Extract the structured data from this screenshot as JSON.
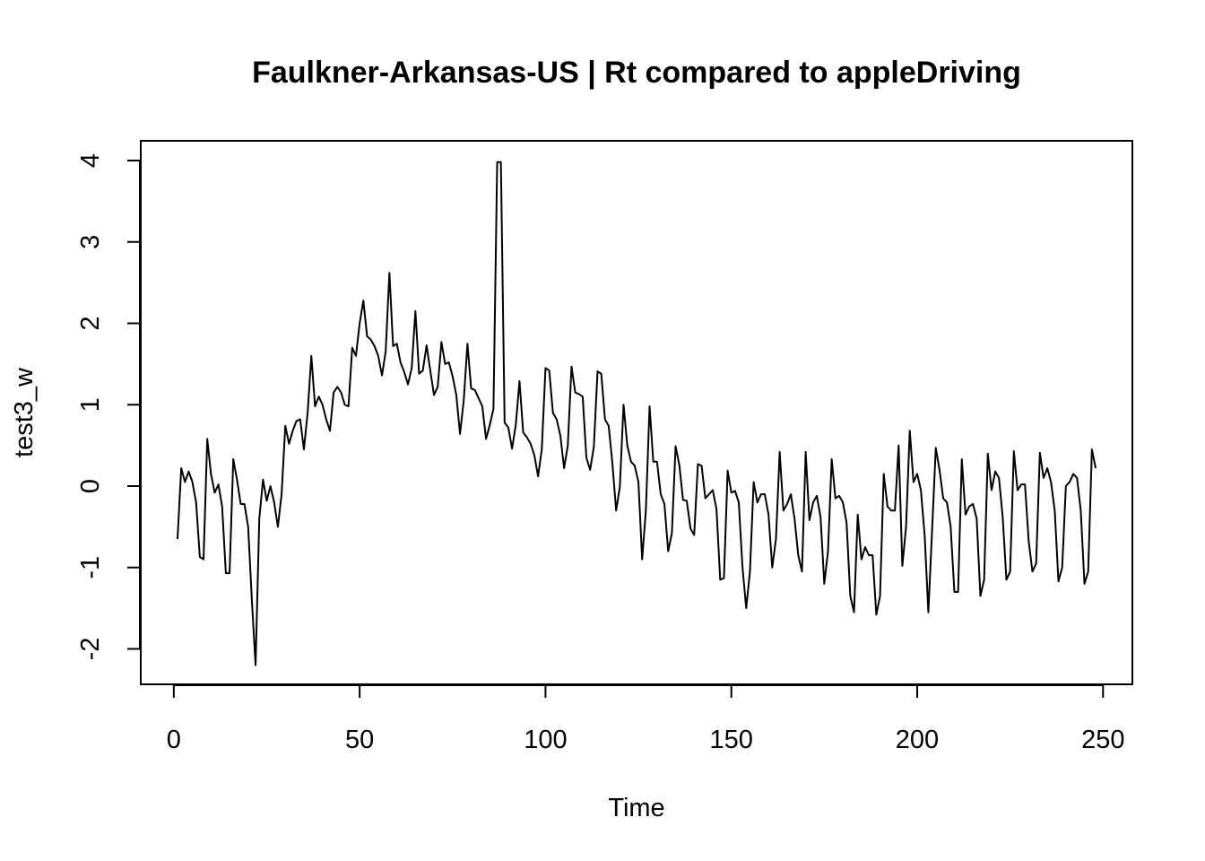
{
  "chart_data": {
    "type": "line",
    "title": "Faulkner-Arkansas-US | Rt compared to appleDriving",
    "xlabel": "Time",
    "ylabel": "test3_w",
    "xlim": [
      1,
      248
    ],
    "ylim": [
      -2.2,
      4.0
    ],
    "x_ticks": [
      0,
      50,
      100,
      150,
      200,
      250
    ],
    "x_tick_labels": [
      "0",
      "50",
      "100",
      "150",
      "200",
      "250"
    ],
    "y_ticks": [
      -2,
      -1,
      0,
      1,
      2,
      3,
      4
    ],
    "y_tick_labels": [
      "-2",
      "-1",
      "0",
      "1",
      "2",
      "3",
      "4"
    ],
    "grid": false,
    "legend": "none",
    "line_color": "#000000",
    "series": [
      {
        "x_start": 1,
        "x_step": 1,
        "values": [
          -0.65,
          0.22,
          0.05,
          0.18,
          0.05,
          -0.2,
          -0.87,
          -0.9,
          0.58,
          0.15,
          -0.08,
          0.02,
          -0.25,
          -1.07,
          -1.07,
          0.33,
          0.08,
          -0.22,
          -0.22,
          -0.5,
          -1.4,
          -2.2,
          -0.4,
          0.08,
          -0.18,
          0.0,
          -0.2,
          -0.5,
          -0.1,
          0.74,
          0.52,
          0.68,
          0.8,
          0.82,
          0.45,
          0.9,
          1.6,
          0.98,
          1.1,
          1.0,
          0.82,
          0.68,
          1.15,
          1.22,
          1.15,
          1.0,
          0.98,
          1.7,
          1.6,
          2.0,
          2.28,
          1.84,
          1.8,
          1.72,
          1.6,
          1.36,
          1.65,
          2.62,
          1.72,
          1.75,
          1.52,
          1.4,
          1.25,
          1.45,
          2.15,
          1.38,
          1.42,
          1.73,
          1.42,
          1.12,
          1.22,
          1.77,
          1.5,
          1.52,
          1.35,
          1.12,
          0.64,
          1.05,
          1.75,
          1.2,
          1.18,
          1.08,
          0.98,
          0.58,
          0.75,
          0.95,
          3.98,
          3.98,
          0.78,
          0.72,
          0.46,
          0.75,
          1.29,
          0.66,
          0.6,
          0.52,
          0.38,
          0.12,
          0.45,
          1.45,
          1.42,
          0.9,
          0.82,
          0.62,
          0.22,
          0.5,
          1.47,
          1.15,
          1.13,
          1.1,
          0.35,
          0.2,
          0.48,
          1.41,
          1.38,
          0.82,
          0.74,
          0.28,
          -0.3,
          -0.01,
          1.0,
          0.5,
          0.3,
          0.25,
          0.05,
          -0.9,
          -0.3,
          0.98,
          0.3,
          0.3,
          -0.1,
          -0.22,
          -0.8,
          -0.58,
          0.49,
          0.26,
          -0.17,
          -0.18,
          -0.52,
          -0.6,
          0.27,
          0.25,
          -0.15,
          -0.1,
          -0.05,
          -0.28,
          -1.15,
          -1.13,
          0.19,
          -0.08,
          -0.06,
          -0.2,
          -1.0,
          -1.5,
          -1.05,
          0.05,
          -0.2,
          -0.1,
          -0.1,
          -0.35,
          -1.0,
          -0.65,
          0.42,
          -0.3,
          -0.22,
          -0.1,
          -0.4,
          -0.85,
          -1.05,
          0.42,
          -0.42,
          -0.2,
          -0.12,
          -0.38,
          -1.2,
          -0.8,
          0.33,
          -0.15,
          -0.12,
          -0.2,
          -0.45,
          -1.35,
          -1.55,
          -0.35,
          -0.9,
          -0.75,
          -0.85,
          -0.85,
          -1.58,
          -1.35,
          0.15,
          -0.25,
          -0.3,
          -0.3,
          0.5,
          -0.98,
          -0.5,
          0.68,
          0.05,
          0.15,
          -0.05,
          -0.6,
          -1.55,
          -0.55,
          0.47,
          0.2,
          -0.15,
          -0.2,
          -0.5,
          -1.3,
          -1.3,
          0.33,
          -0.35,
          -0.25,
          -0.22,
          -0.4,
          -1.35,
          -1.15,
          0.4,
          -0.05,
          0.18,
          0.1,
          -0.38,
          -1.15,
          -1.05,
          0.43,
          -0.05,
          0.02,
          0.02,
          -0.68,
          -1.05,
          -0.95,
          0.41,
          0.1,
          0.22,
          0.05,
          -0.3,
          -1.17,
          -1.0,
          0.0,
          0.05,
          0.15,
          0.1,
          -0.3,
          -1.2,
          -1.05,
          0.45,
          0.22
        ]
      }
    ]
  }
}
